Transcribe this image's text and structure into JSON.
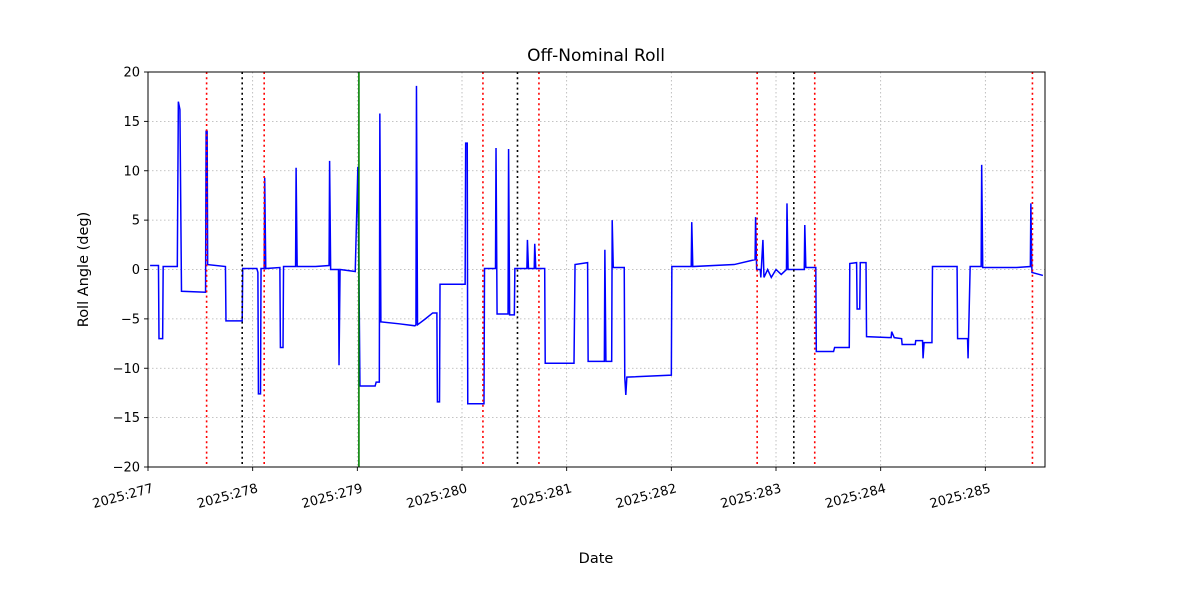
{
  "figure": {
    "background": "#ffffff"
  },
  "chart_data": {
    "type": "line",
    "title": "Off-Nominal Roll",
    "xlabel": "Date",
    "ylabel": "Roll Angle (deg)",
    "xlim": [
      277.0,
      285.57
    ],
    "ylim": [
      -20,
      20
    ],
    "grid": true,
    "grid_style": "dotted",
    "grid_color": "#b0b0b0",
    "line_color": "#0000ff",
    "xticks": [
      {
        "value": 277,
        "label": "2025:277"
      },
      {
        "value": 278,
        "label": "2025:278"
      },
      {
        "value": 279,
        "label": "2025:279"
      },
      {
        "value": 280,
        "label": "2025:280"
      },
      {
        "value": 281,
        "label": "2025:281"
      },
      {
        "value": 282,
        "label": "2025:282"
      },
      {
        "value": 283,
        "label": "2025:283"
      },
      {
        "value": 284,
        "label": "2025:284"
      },
      {
        "value": 285,
        "label": "2025:285"
      }
    ],
    "yticks": [
      {
        "value": -20,
        "label": "−20"
      },
      {
        "value": -15,
        "label": "−15"
      },
      {
        "value": -10,
        "label": "−10"
      },
      {
        "value": -5,
        "label": "−5"
      },
      {
        "value": 0,
        "label": "0"
      },
      {
        "value": 5,
        "label": "5"
      },
      {
        "value": 10,
        "label": "10"
      },
      {
        "value": 15,
        "label": "15"
      },
      {
        "value": 20,
        "label": "20"
      }
    ],
    "vlines": [
      {
        "x": 277.56,
        "color": "#ff0000",
        "style": "dotted"
      },
      {
        "x": 277.9,
        "color": "#000000",
        "style": "dotted"
      },
      {
        "x": 278.11,
        "color": "#ff0000",
        "style": "dotted"
      },
      {
        "x": 279.015,
        "color": "#008000",
        "style": "solid"
      },
      {
        "x": 280.2,
        "color": "#ff0000",
        "style": "dotted"
      },
      {
        "x": 280.53,
        "color": "#000000",
        "style": "dotted"
      },
      {
        "x": 280.735,
        "color": "#ff0000",
        "style": "dotted"
      },
      {
        "x": 282.82,
        "color": "#ff0000",
        "style": "dotted"
      },
      {
        "x": 283.17,
        "color": "#000000",
        "style": "dotted"
      },
      {
        "x": 283.37,
        "color": "#ff0000",
        "style": "dotted"
      },
      {
        "x": 285.45,
        "color": "#ff0000",
        "style": "dotted"
      }
    ],
    "series": [
      {
        "name": "off-nominal-roll",
        "x": [
          277.02,
          277.1,
          277.105,
          277.14,
          277.145,
          277.28,
          277.29,
          277.305,
          277.32,
          277.55,
          277.555,
          277.565,
          277.57,
          277.74,
          277.745,
          277.9,
          277.905,
          278.04,
          278.05,
          278.055,
          278.075,
          278.08,
          278.11,
          278.115,
          278.125,
          278.26,
          278.265,
          278.29,
          278.295,
          278.41,
          278.415,
          278.425,
          278.6,
          278.73,
          278.735,
          278.745,
          278.82,
          278.825,
          278.835,
          278.98,
          279.005,
          279.015,
          279.025,
          279.17,
          279.18,
          279.21,
          279.215,
          279.225,
          279.4,
          279.55,
          279.56,
          279.565,
          279.575,
          279.65,
          279.72,
          279.76,
          279.765,
          279.785,
          279.79,
          280.03,
          280.035,
          280.05,
          280.055,
          280.21,
          280.215,
          280.32,
          280.325,
          280.335,
          280.44,
          280.445,
          280.455,
          280.5,
          280.505,
          280.62,
          280.625,
          280.635,
          280.69,
          280.695,
          280.705,
          280.79,
          280.795,
          281.07,
          281.08,
          281.2,
          281.205,
          281.36,
          281.365,
          281.375,
          281.43,
          281.435,
          281.445,
          281.55,
          281.555,
          281.565,
          281.575,
          282.0,
          282.005,
          282.19,
          282.195,
          282.205,
          282.6,
          282.8,
          282.805,
          282.815,
          282.85,
          282.855,
          282.875,
          282.885,
          282.92,
          282.955,
          283.0,
          283.05,
          283.1,
          283.105,
          283.115,
          283.27,
          283.275,
          283.285,
          283.38,
          283.385,
          283.55,
          283.56,
          283.7,
          283.705,
          283.77,
          283.775,
          283.8,
          283.805,
          283.86,
          283.865,
          284.1,
          284.105,
          284.13,
          284.2,
          284.205,
          284.33,
          284.335,
          284.4,
          284.405,
          284.415,
          284.49,
          284.495,
          284.73,
          284.735,
          284.83,
          284.835,
          284.855,
          284.96,
          284.965,
          284.975,
          285.3,
          285.43,
          285.435,
          285.445,
          285.55
        ],
        "y": [
          0.4,
          0.4,
          -7.0,
          -7.0,
          0.3,
          0.3,
          17.0,
          16.2,
          -2.2,
          -2.3,
          14.0,
          14.0,
          0.5,
          0.3,
          -5.2,
          -5.2,
          0.1,
          0.1,
          -0.3,
          -12.6,
          -12.6,
          0.1,
          0.1,
          9.3,
          0.1,
          0.2,
          -7.9,
          -7.9,
          0.3,
          0.3,
          10.3,
          0.3,
          0.3,
          0.4,
          11.0,
          0.0,
          0.0,
          -9.7,
          0.0,
          -0.2,
          10.4,
          0.0,
          -11.8,
          -11.8,
          -11.4,
          -11.4,
          15.8,
          -5.3,
          -5.5,
          -5.7,
          -5.6,
          18.6,
          -5.6,
          -5.0,
          -4.4,
          -4.4,
          -13.4,
          -13.4,
          -1.5,
          -1.5,
          12.8,
          12.8,
          -13.6,
          -13.6,
          0.1,
          0.1,
          12.3,
          -4.5,
          -4.5,
          12.2,
          -4.6,
          -4.6,
          0.1,
          0.1,
          3.0,
          0.1,
          0.1,
          2.6,
          0.1,
          0.1,
          -9.5,
          -9.5,
          0.5,
          0.7,
          -9.3,
          -9.3,
          2.0,
          -9.3,
          -9.3,
          5.0,
          0.2,
          0.2,
          -10.9,
          -12.7,
          -10.9,
          -10.7,
          0.3,
          0.3,
          4.8,
          0.3,
          0.5,
          1.0,
          5.3,
          0.0,
          0.0,
          -0.8,
          3.0,
          -0.8,
          0.0,
          -0.8,
          0.0,
          -0.5,
          0.0,
          6.7,
          0.0,
          0.0,
          4.5,
          0.2,
          0.2,
          -8.3,
          -8.3,
          -7.9,
          -7.9,
          0.6,
          0.7,
          -4.0,
          -4.0,
          0.7,
          0.7,
          -6.8,
          -6.9,
          -6.3,
          -6.9,
          -7.0,
          -7.6,
          -7.6,
          -7.2,
          -7.2,
          -9.0,
          -7.4,
          -7.4,
          0.3,
          0.3,
          -7.0,
          -7.0,
          -9.0,
          0.3,
          0.3,
          10.6,
          0.2,
          0.2,
          0.3,
          6.7,
          -0.3,
          -0.6
        ]
      }
    ]
  }
}
